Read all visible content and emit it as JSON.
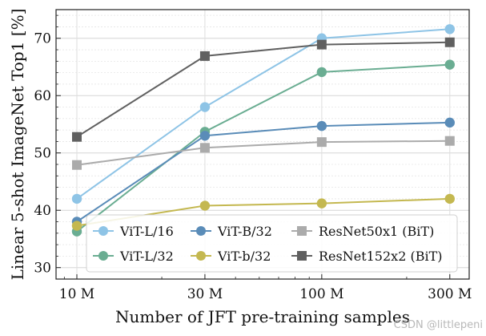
{
  "chart_data": {
    "type": "line",
    "title": "",
    "xlabel": "Number of JFT pre-training samples",
    "ylabel": "Linear 5-shot ImageNet Top1 [%]",
    "x_scale": "log",
    "categories": [
      "10 M",
      "30 M",
      "100 M",
      "300 M"
    ],
    "x": [
      9,
      30,
      90,
      300
    ],
    "ylim": [
      28,
      75
    ],
    "yticks": [
      30,
      40,
      50,
      60,
      70
    ],
    "grid": true,
    "legend_position": "bottom-right",
    "series": [
      {
        "name": "ViT-L/16",
        "color": "#8ec4e6",
        "marker": "circle",
        "values": [
          42.0,
          58.0,
          70.0,
          71.6
        ]
      },
      {
        "name": "ViT-L/32",
        "color": "#6aad92",
        "marker": "circle",
        "values": [
          36.3,
          53.7,
          64.1,
          65.4
        ]
      },
      {
        "name": "ViT-B/32",
        "color": "#5a8cb8",
        "marker": "circle",
        "values": [
          38.0,
          53.0,
          54.7,
          55.3
        ]
      },
      {
        "name": "ViT-b/32",
        "color": "#c4b850",
        "marker": "circle",
        "values": [
          37.3,
          40.8,
          41.2,
          42.0
        ]
      },
      {
        "name": "ResNet50x1 (BiT)",
        "color": "#ababab",
        "marker": "square",
        "values": [
          47.9,
          50.9,
          51.9,
          52.1
        ]
      },
      {
        "name": "ResNet152x2 (BiT)",
        "color": "#606060",
        "marker": "square",
        "values": [
          52.8,
          66.9,
          68.9,
          69.3
        ]
      }
    ]
  },
  "watermark": "CSDN @littlepeni"
}
